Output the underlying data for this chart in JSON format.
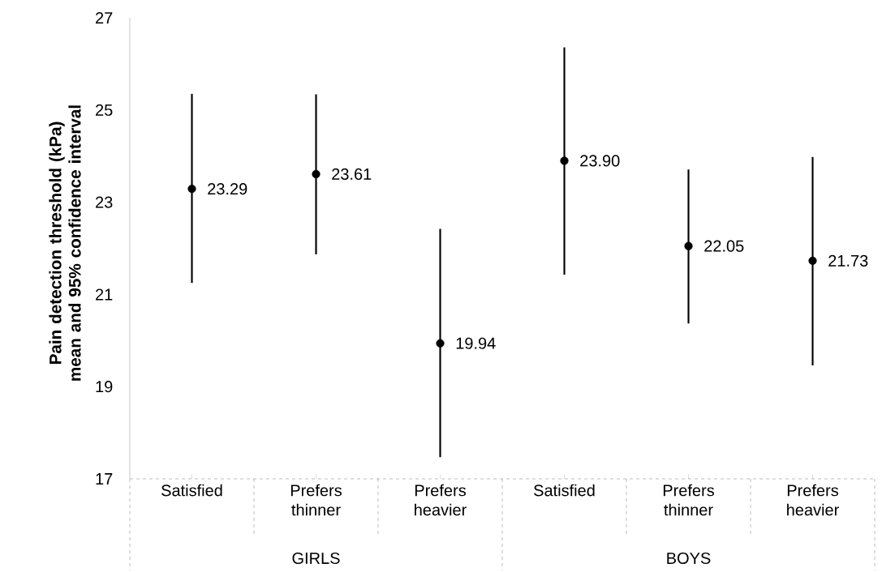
{
  "chart_data": {
    "type": "scatter",
    "ylabel": "Pain detection threshold (kPa) mean and 95% confidence interval",
    "categories": [
      "Satisfied",
      "Prefers thinner",
      "Prefers heavier",
      "Satisfied",
      "Prefers thinner",
      "Prefers heavier"
    ],
    "values": [
      23.29,
      23.61,
      19.94,
      23.9,
      22.05,
      21.73
    ],
    "value_labels": [
      "23.29",
      "23.61",
      "19.94",
      "23.90",
      "22.05",
      "21.73"
    ],
    "errors": [
      [
        21.25,
        25.35
      ],
      [
        21.87,
        25.34
      ],
      [
        17.47,
        22.42
      ],
      [
        21.43,
        26.36
      ],
      [
        20.37,
        23.71
      ],
      [
        19.46,
        23.98
      ]
    ],
    "color": "#000000",
    "marker": "circle",
    "ylim": [
      17,
      27
    ],
    "yticks": [
      17,
      19,
      21,
      23,
      25,
      27
    ],
    "grid": false,
    "annotations": [
      "GIRLS",
      "BOYS"
    ]
  }
}
